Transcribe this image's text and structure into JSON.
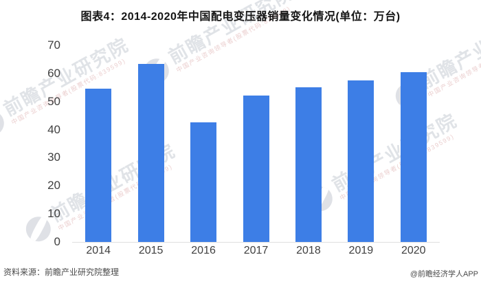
{
  "title": "图表4：2014-2020年中国配电变压器销量变化情况(单位：万台)",
  "footer": {
    "source": "资料来源：前瞻产业研究院整理",
    "brand": "@前瞻经济学人APP"
  },
  "watermark": {
    "text": "前瞻产业研究院",
    "subtext": "中国产业咨询领导者(股票代码:839599)"
  },
  "colors": {
    "bar": "#3d7ee6",
    "axis_label": "#404040",
    "axis_line": "#dfdfdf",
    "title_text": "#141414",
    "footer_text": "#4a4a4a"
  },
  "chart_data": {
    "type": "bar",
    "title": "图表4：2014-2020年中国配电变压器销量变化情况(单位：万台)",
    "categories": [
      "2014",
      "2015",
      "2016",
      "2017",
      "2018",
      "2019",
      "2020"
    ],
    "values": [
      54.7,
      63.5,
      42.6,
      52.2,
      55.0,
      57.6,
      60.4
    ],
    "unit": "万台",
    "xlabel": "",
    "ylabel": "",
    "ylim": [
      0,
      70
    ],
    "yticks": [
      0,
      10,
      20,
      30,
      40,
      50,
      60,
      70
    ],
    "grid": false,
    "legend": false,
    "bar_color": "#3d7ee6"
  }
}
